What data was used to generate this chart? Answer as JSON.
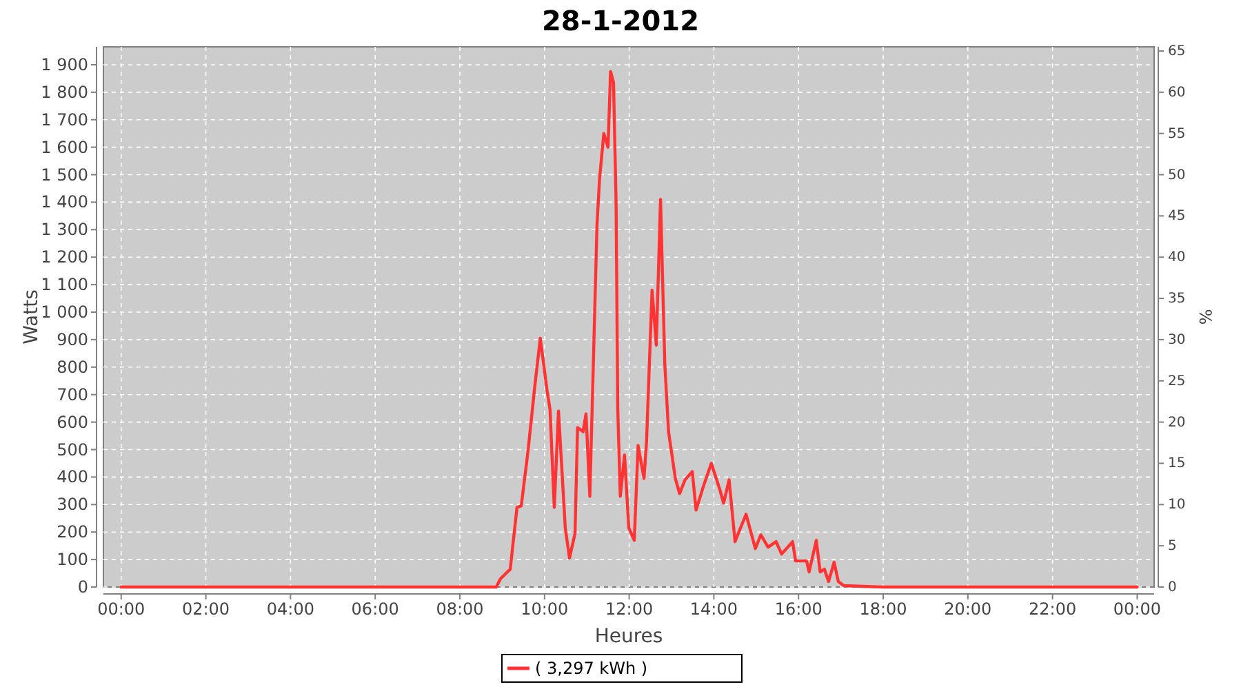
{
  "chart_data": {
    "type": "line",
    "title": "28-1-2012",
    "xlabel": "Heures",
    "ylabel": "Watts",
    "y2label": "%",
    "xlim": [
      -0.42,
      24.4
    ],
    "ylim": [
      0,
      1965
    ],
    "y2lim": [
      0,
      65.5
    ],
    "xticks": [
      {
        "value": 0,
        "label": "00:00"
      },
      {
        "value": 2,
        "label": "02:00"
      },
      {
        "value": 4,
        "label": "04:00"
      },
      {
        "value": 6,
        "label": "06:00"
      },
      {
        "value": 8,
        "label": "08:00"
      },
      {
        "value": 10,
        "label": "10:00"
      },
      {
        "value": 12,
        "label": "12:00"
      },
      {
        "value": 14,
        "label": "14:00"
      },
      {
        "value": 16,
        "label": "16:00"
      },
      {
        "value": 18,
        "label": "18:00"
      },
      {
        "value": 20,
        "label": "20:00"
      },
      {
        "value": 22,
        "label": "22:00"
      },
      {
        "value": 24,
        "label": "00:00"
      }
    ],
    "yticks": [
      0,
      100,
      200,
      300,
      400,
      500,
      600,
      700,
      800,
      900,
      {
        "value": 1000,
        "label": "1 000"
      },
      {
        "value": 1100,
        "label": "1 100"
      },
      {
        "value": 1200,
        "label": "1 200"
      },
      {
        "value": 1300,
        "label": "1 300"
      },
      {
        "value": 1400,
        "label": "1 400"
      },
      {
        "value": 1500,
        "label": "1 500"
      },
      {
        "value": 1600,
        "label": "1 600"
      },
      {
        "value": 1700,
        "label": "1 700"
      },
      {
        "value": 1800,
        "label": "1 800"
      },
      {
        "value": 1900,
        "label": "1 900"
      }
    ],
    "y2ticks": [
      0,
      5,
      10,
      15,
      20,
      25,
      30,
      35,
      40,
      45,
      50,
      55,
      60,
      65
    ],
    "grid": true,
    "legend": "bottom",
    "marker": "none",
    "line_style": "solid",
    "series": [
      {
        "name": "( 3,297 kWh )",
        "color": "#ff3333",
        "x": [
          0,
          4,
          8,
          8.86,
          8.96,
          9.19,
          9.35,
          9.45,
          9.61,
          9.77,
          9.9,
          10.06,
          10.13,
          10.23,
          10.33,
          10.49,
          10.59,
          10.72,
          10.78,
          10.91,
          10.98,
          11.07,
          11.24,
          11.3,
          11.4,
          11.5,
          11.56,
          11.63,
          11.69,
          11.73,
          11.79,
          11.89,
          11.99,
          12.12,
          12.21,
          12.35,
          12.41,
          12.54,
          12.64,
          12.74,
          12.84,
          12.93,
          13.09,
          13.19,
          13.32,
          13.49,
          13.58,
          13.75,
          13.94,
          14.14,
          14.23,
          14.36,
          14.5,
          14.76,
          14.98,
          15.11,
          15.28,
          15.47,
          15.6,
          15.86,
          15.93,
          16.19,
          16.25,
          16.42,
          16.51,
          16.61,
          16.71,
          16.84,
          16.94,
          17.07,
          18,
          20,
          22,
          24
        ],
        "values": [
          0,
          0,
          0,
          0,
          30,
          65,
          290,
          295,
          495,
          730,
          905,
          715,
          645,
          290,
          640,
          215,
          105,
          195,
          580,
          565,
          630,
          330,
          1320,
          1485,
          1650,
          1600,
          1875,
          1835,
          1400,
          645,
          330,
          480,
          215,
          170,
          515,
          395,
          530,
          1080,
          880,
          1410,
          815,
          565,
          395,
          340,
          390,
          420,
          280,
          365,
          450,
          355,
          305,
          390,
          165,
          265,
          140,
          190,
          145,
          165,
          120,
          165,
          95,
          95,
          55,
          170,
          55,
          65,
          20,
          90,
          20,
          5,
          0,
          0,
          0,
          0
        ]
      }
    ]
  }
}
